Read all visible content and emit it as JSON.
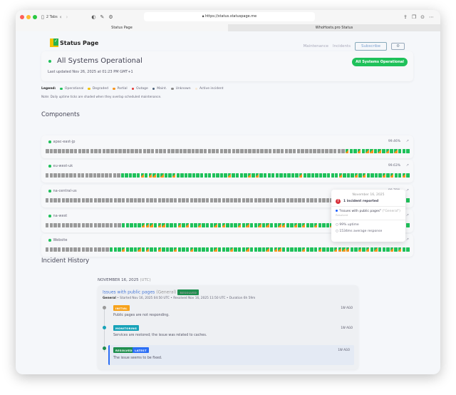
{
  "browser": {
    "tabs_count": "2 Tabs",
    "url": "https://status.statuspage.me",
    "tabs": [
      {
        "label": "Status Page"
      },
      {
        "label": "WhoHosts.pro Status"
      }
    ]
  },
  "header": {
    "logo": "Status Page",
    "logo_sup": "hosted",
    "nav": [
      "Maintenance",
      "Incidents"
    ],
    "subscribe": "Subscribe",
    "settings_icon": "gear-icon"
  },
  "status": {
    "title": "All Systems Operational",
    "updated": "Last updated Nov 26, 2025 at 01:23 PM GMT+1",
    "badge": "All Systems Operational"
  },
  "legend": {
    "label": "Legend:",
    "items": [
      {
        "label": "Operational",
        "color": "#1fc15a"
      },
      {
        "label": "Degraded",
        "color": "#f2c200"
      },
      {
        "label": "Partial",
        "color": "#f7941d"
      },
      {
        "label": "Outage",
        "color": "#e53935"
      },
      {
        "label": "Maint.",
        "color": "#4a6078"
      },
      {
        "label": "Unknown",
        "color": "#8a8a8a"
      },
      {
        "label": "Active incident",
        "color": "#f6e8d6"
      }
    ],
    "note": "Note: Daily uptime ticks are shaded when they overlap scheduled maintenance."
  },
  "components_heading": "Components",
  "tick_colors": {
    "g": "#1fc15a",
    "x": "#9a9a9a",
    "p": "#f7941d"
  },
  "components": [
    {
      "name": "apac-east-jp",
      "uptime": "99.46%",
      "days": "xxxxxxxxxxxxxxxxxxxxxxxxxxxxxxxxxxxxxxxxxxxxxxxxxxxxxxxxxxxxxxxxxxxxxxxxxxpggpgppgpgpgpggg"
    },
    {
      "name": "eu-west-uk",
      "uptime": "99.63%",
      "days": "xxxxxxxxxxxxxxxxxxxgggggpgppgpggpgggggggggggggpggggpgpggggggggggpgggggggggpgggpgpggggpgpggpg"
    },
    {
      "name": "na-central-us",
      "uptime": "99.78%",
      "days": "xxxxxxxxxxxxxxxxxxxxxxxxxxxxxxxxxxxxxxxxxxxxxxxxxxxxxxxxxxxxxxxxxxxxxxxxxxxxxxxxxxxxxxggggg"
    },
    {
      "name": "na-west",
      "uptime": "",
      "days": "xxxxxxxxxxxxxxxxxxxgggggpppgppgggpgpggpgggpgpgggpgpggpgpggppggpgpggpgggpgpgggpgppgggpgpgpgg"
    },
    {
      "name": "Website",
      "uptime": "",
      "days": "xxxxxxxxxxxxxxxxgggpgggpgpggpgggpgggpgggggpgggpgggpggggpgppgggggpgggpgggppppggpgpgpgggpgpgg"
    }
  ],
  "tooltip": {
    "date": "November 16, 2025",
    "count": "1 incident reported",
    "incident": "\"Issues with public pages\"",
    "incident_group": "(\"General\")",
    "incident_state": "Resolved",
    "uptime": "99% uptime",
    "response": "1534ms average response"
  },
  "history": {
    "heading": "Incident History",
    "date": "NOVEMBER 16, 2025",
    "tz": "(UTC)",
    "incident": {
      "title": "Issues with public pages",
      "group": "(General)",
      "badge": "RESOLVED",
      "meta_group": "General",
      "meta": " • Started Nov 16, 2025 04:50 UTC • Resolved Nov 16, 2025 11:50 UTC • Duration 6h 59m",
      "updates": [
        {
          "badge": "INITIAL",
          "color": "#f7a21b",
          "dot": "#9a9a9a",
          "text": "Public pages are not responding.",
          "ago": "1W AGO"
        },
        {
          "badge": "MONITORING",
          "color": "#17a2b8",
          "dot": "#17a2b8",
          "text": "Services are restored; the issue was related to caches.",
          "ago": "1W AGO"
        },
        {
          "badge": "RESOLVED",
          "badge2": "LATEST",
          "color": "#1e8e4e",
          "color2": "#2b6ef5",
          "dot": "#1e8e4e",
          "text": "The issue seems to be fixed.",
          "ago": "1W AGO"
        }
      ]
    }
  }
}
